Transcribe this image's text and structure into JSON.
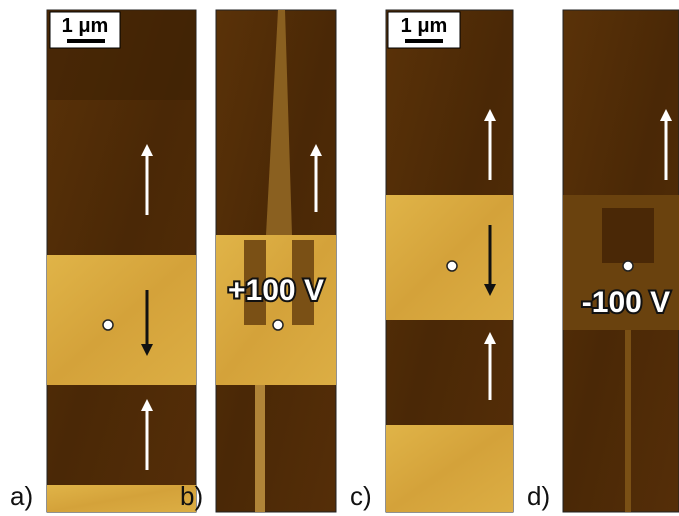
{
  "panels": [
    {
      "label": "a)",
      "scale_bar": "1 μm"
    },
    {
      "label": "b)",
      "voltage": "+100 V"
    },
    {
      "label": "c)",
      "scale_bar": "1 μm"
    },
    {
      "label": "d)",
      "voltage": "-100 V"
    }
  ]
}
